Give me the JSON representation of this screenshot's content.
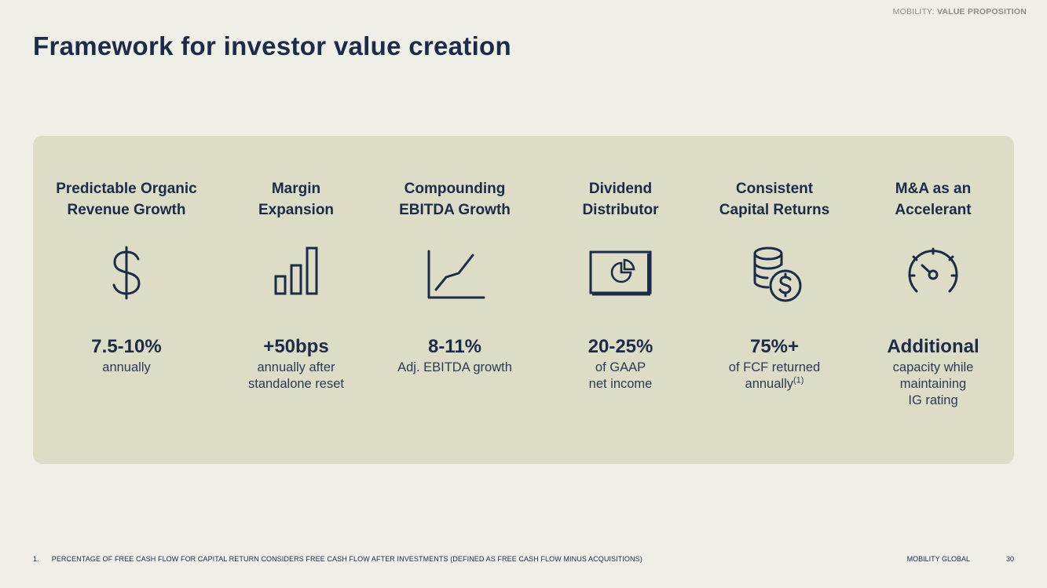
{
  "header": {
    "section_prefix": "MOBILITY:",
    "section_name": "VALUE PROPOSITION",
    "title": "Framework for investor value creation"
  },
  "pillars": [
    {
      "title_line1": "Predictable Organic",
      "title_line2": "Revenue Growth",
      "icon": "dollar-sign-icon",
      "metric": "7.5-10%",
      "desc_lines": [
        "annually",
        "",
        ""
      ],
      "superscript": ""
    },
    {
      "title_line1": "Margin",
      "title_line2": "Expansion",
      "icon": "bar-chart-icon",
      "metric": "+50bps",
      "desc_lines": [
        "annually after",
        "standalone reset",
        ""
      ],
      "superscript": ""
    },
    {
      "title_line1": "Compounding",
      "title_line2": "EBITDA Growth",
      "icon": "line-chart-icon",
      "metric": "8-11%",
      "desc_lines": [
        "Adj. EBITDA growth",
        "",
        ""
      ],
      "superscript": ""
    },
    {
      "title_line1": "Dividend",
      "title_line2": "Distributor",
      "icon": "pie-chart-screen-icon",
      "metric": "20-25%",
      "desc_lines": [
        "of GAAP",
        "net income",
        ""
      ],
      "superscript": ""
    },
    {
      "title_line1": "Consistent",
      "title_line2": "Capital Returns",
      "icon": "coins-stack-icon",
      "metric": "75%+",
      "desc_lines": [
        "of FCF returned",
        "annually",
        ""
      ],
      "superscript": "(1)"
    },
    {
      "title_line1": "M&A as an",
      "title_line2": "Accelerant",
      "icon": "speedometer-icon",
      "metric": "Additional",
      "desc_lines": [
        "capacity while",
        "maintaining",
        "IG rating"
      ],
      "superscript": ""
    }
  ],
  "footer": {
    "footnote_number": "1.",
    "footnote_text": "PERCENTAGE OF FREE CASH FLOW FOR CAPITAL RETURN CONSIDERS FREE CASH FLOW AFTER INVESTMENTS (DEFINED AS FREE CASH FLOW MINUS ACQUISITIONS)",
    "brand": "MOBILITY GLOBAL",
    "page_number": "30"
  },
  "colors": {
    "background": "#efeee7",
    "panel": "#dcdcc7",
    "navy": "#1c2b47"
  }
}
